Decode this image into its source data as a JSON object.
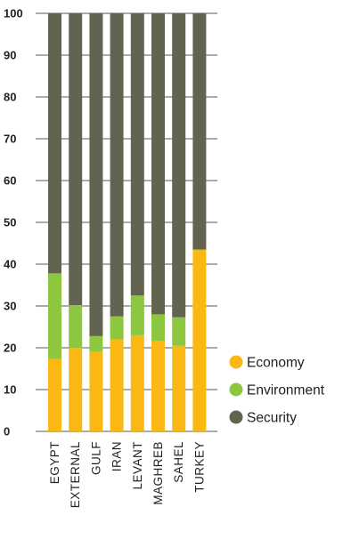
{
  "chart_data": {
    "type": "bar",
    "stacked": true,
    "categories": [
      "EGYPT",
      "EXTERNAL",
      "GULF",
      "IRAN",
      "LEVANT",
      "MAGHREB",
      "SAHEL",
      "TURKEY"
    ],
    "series": [
      {
        "name": "Economy",
        "color": "#fbb714",
        "values": [
          17.3,
          20,
          19,
          22,
          23,
          21.7,
          20.5,
          43.5
        ]
      },
      {
        "name": "Environment",
        "color": "#8dc63f",
        "values": [
          20.5,
          10.2,
          3.8,
          5.5,
          9.5,
          6.3,
          6.8,
          0
        ]
      },
      {
        "name": "Security",
        "color": "#636351",
        "values": [
          62.2,
          69.8,
          77.2,
          72.5,
          67.5,
          72,
          72.7,
          56.5
        ]
      }
    ],
    "yticks": [
      "0",
      "10",
      "20",
      "30",
      "40",
      "50",
      "60",
      "70",
      "80",
      "90",
      "100"
    ],
    "ylim": [
      0,
      100
    ],
    "grid": true,
    "legend_position": "right"
  }
}
